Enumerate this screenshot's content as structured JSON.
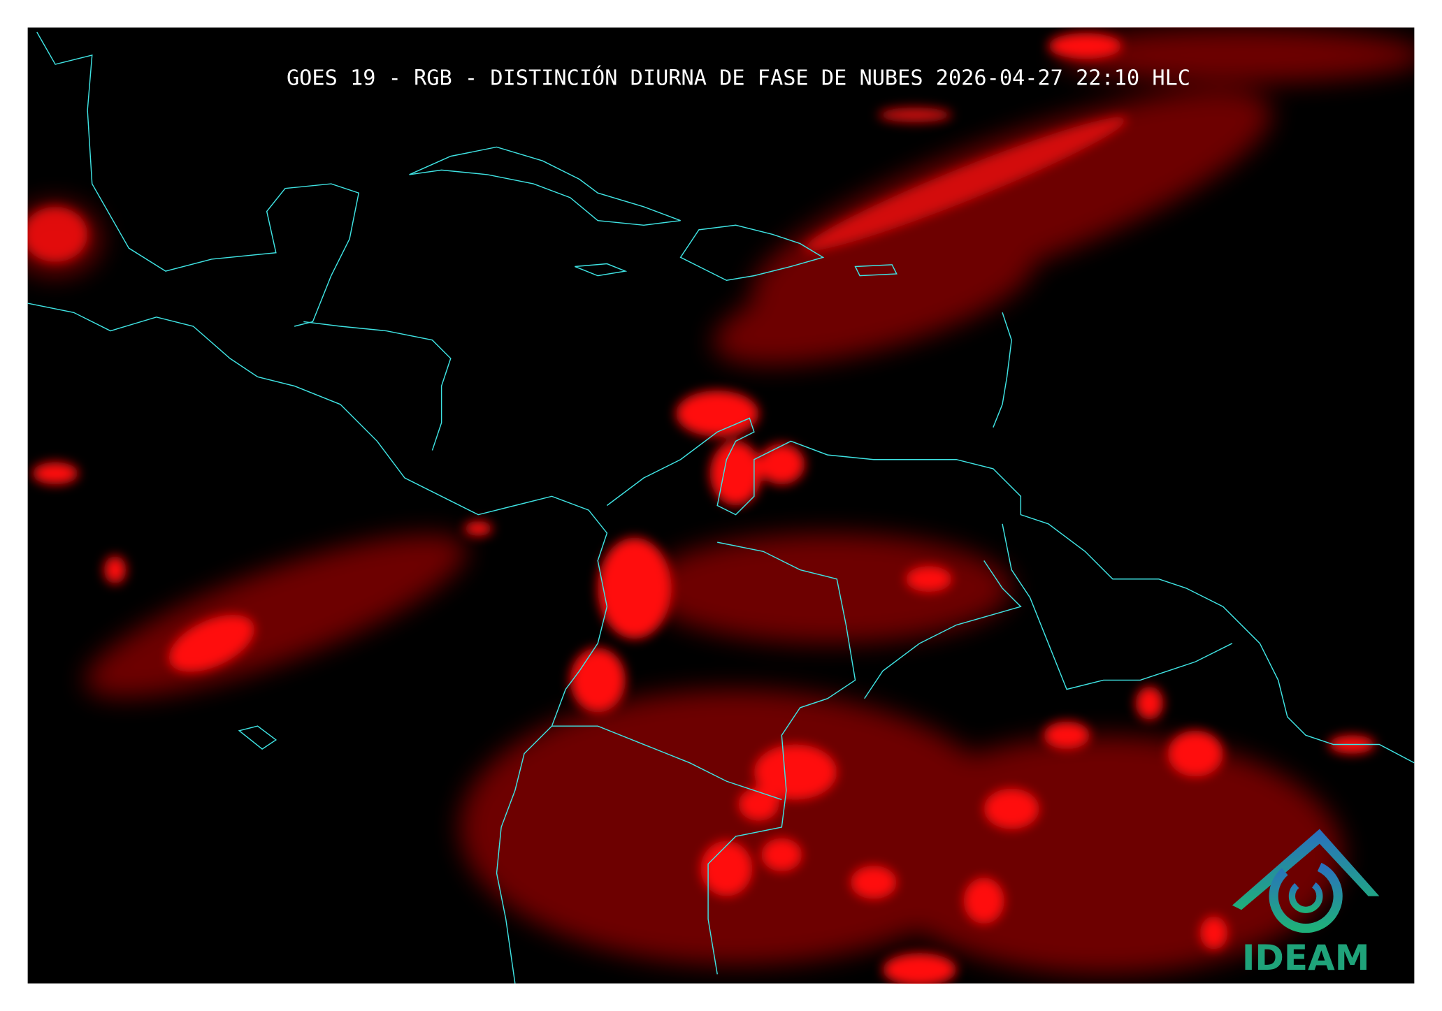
{
  "map": {
    "title": "GOES 19 - RGB - DISTINCIÓN DIURNA DE FASE DE NUBES 2026-04-27 22:10 HLC",
    "logo": {
      "text": "IDEAM"
    }
  }
}
